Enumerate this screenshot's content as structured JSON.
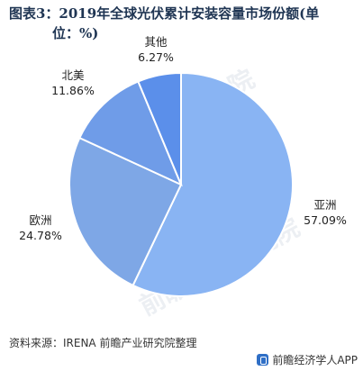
{
  "title": {
    "line1": "图表3：2019年全球光伏累计安装容量市场份额(单",
    "line2": "位：%)"
  },
  "chart_data": {
    "type": "pie",
    "categories": [
      "亚洲",
      "欧洲",
      "北美",
      "其他"
    ],
    "values": [
      57.09,
      24.78,
      11.86,
      6.27
    ],
    "value_labels": [
      "57.09%",
      "24.78%",
      "11.86%",
      "6.27%"
    ],
    "colors": [
      "#89b4f3",
      "#7ea7e6",
      "#6f9ce8",
      "#5b8fea"
    ]
  },
  "watermark": {
    "text": "前瞻产业研究院"
  },
  "source": {
    "text": "资料来源：IRENA 前瞻产业研究院整理"
  },
  "footer": {
    "brand": "前瞻经济学人APP",
    "logo_icon": "qianzhan-logo-icon"
  }
}
